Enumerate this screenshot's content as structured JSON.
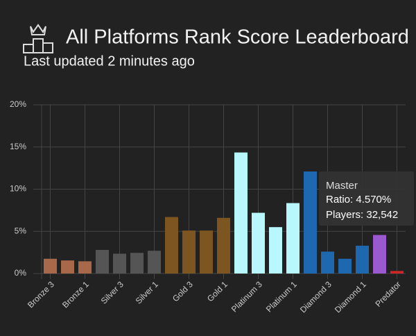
{
  "header": {
    "title": "All Platforms Rank Score Leaderboard",
    "subtitle": "Last updated 2 minutes ago"
  },
  "chart_data": {
    "type": "bar",
    "categories": [
      "Bronze 3",
      null,
      "Bronze 1",
      null,
      "Silver 3",
      null,
      "Silver 1",
      null,
      "Gold 3",
      null,
      "Gold 1",
      null,
      "Platinum 3",
      null,
      "Platinum 1",
      null,
      "Diamond 3",
      null,
      "Diamond 1",
      null,
      "Predator"
    ],
    "values": [
      1.75,
      1.55,
      1.45,
      2.8,
      2.35,
      2.45,
      2.7,
      6.7,
      5.1,
      5.1,
      6.6,
      14.35,
      7.2,
      5.5,
      8.35,
      12.1,
      2.6,
      1.75,
      3.3,
      4.57,
      0.3
    ],
    "colors": [
      "#a8694a",
      "#a8694a",
      "#a8694a",
      "#555555",
      "#555555",
      "#555555",
      "#555555",
      "#7c5520",
      "#7c5520",
      "#7c5520",
      "#7c5520",
      "#b8f8fc",
      "#b8f8fc",
      "#b8f8fc",
      "#b8f8fc",
      "#1e68b0",
      "#1e68b0",
      "#1e68b0",
      "#1e68b0",
      "#9b59d0",
      "#d02525"
    ],
    "ylim": [
      0,
      20
    ],
    "yticks": [
      {
        "value": 0,
        "label": "0%"
      },
      {
        "value": 5,
        "label": "5%"
      },
      {
        "value": 10,
        "label": "10%"
      },
      {
        "value": 15,
        "label": "15%"
      },
      {
        "value": 20,
        "label": "20%"
      }
    ],
    "grid": true,
    "tooltip": {
      "title": "Master",
      "lines": [
        "Ratio: 4.570%",
        "Players: 32,542"
      ]
    }
  }
}
